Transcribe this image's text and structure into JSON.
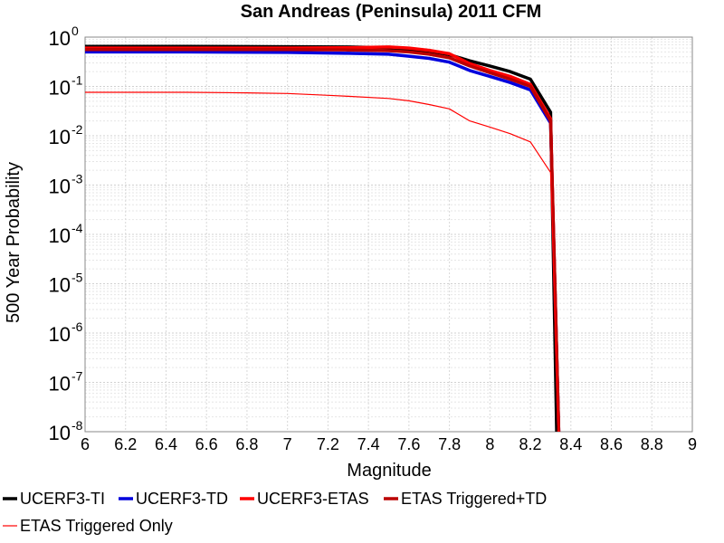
{
  "chart_data": {
    "type": "line",
    "title": "San Andreas (Peninsula) 2011 CFM",
    "xlabel": "Magnitude",
    "ylabel": "500 Year Probability",
    "xlim": [
      6,
      9
    ],
    "ylim": [
      1e-08,
      1
    ],
    "y_scale": "log",
    "grid": true,
    "legend_position": "bottom",
    "x_ticks": [
      "6",
      "6.2",
      "6.4",
      "6.6",
      "6.8",
      "7",
      "7.2",
      "7.4",
      "7.6",
      "7.8",
      "8",
      "8.2",
      "8.4",
      "8.6",
      "8.8",
      "9"
    ],
    "y_ticks": [
      {
        "base": "10",
        "exp": "0"
      },
      {
        "base": "10",
        "exp": "-1"
      },
      {
        "base": "10",
        "exp": "-2"
      },
      {
        "base": "10",
        "exp": "-3"
      },
      {
        "base": "10",
        "exp": "-4"
      },
      {
        "base": "10",
        "exp": "-5"
      },
      {
        "base": "10",
        "exp": "-6"
      },
      {
        "base": "10",
        "exp": "-7"
      },
      {
        "base": "10",
        "exp": "-8"
      }
    ],
    "series": [
      {
        "name": "UCERF3-TI",
        "color": "#000000",
        "width": 3.5,
        "x": [
          6.0,
          6.5,
          7.0,
          7.3,
          7.5,
          7.6,
          7.7,
          7.8,
          7.9,
          8.0,
          8.1,
          8.2,
          8.3,
          8.33
        ],
        "y": [
          0.65,
          0.65,
          0.64,
          0.63,
          0.61,
          0.57,
          0.52,
          0.44,
          0.33,
          0.26,
          0.2,
          0.14,
          0.03,
          1e-08
        ]
      },
      {
        "name": "UCERF3-TD",
        "color": "#0000dd",
        "width": 3.5,
        "x": [
          6.0,
          6.5,
          7.0,
          7.3,
          7.5,
          7.6,
          7.7,
          7.8,
          7.9,
          8.0,
          8.1,
          8.2,
          8.3,
          8.34
        ],
        "y": [
          0.5,
          0.5,
          0.49,
          0.47,
          0.45,
          0.41,
          0.37,
          0.31,
          0.21,
          0.16,
          0.12,
          0.085,
          0.018,
          1e-08
        ]
      },
      {
        "name": "UCERF3-ETAS",
        "color": "#ff0000",
        "width": 3.5,
        "x": [
          6.0,
          6.5,
          7.0,
          7.3,
          7.5,
          7.6,
          7.7,
          7.8,
          7.9,
          8.0,
          8.1,
          8.2,
          8.3,
          8.34
        ],
        "y": [
          0.6,
          0.6,
          0.6,
          0.61,
          0.63,
          0.6,
          0.54,
          0.46,
          0.29,
          0.21,
          0.16,
          0.11,
          0.022,
          1e-08
        ]
      },
      {
        "name": "ETAS Triggered+TD",
        "color": "#bb0000",
        "width": 3.5,
        "x": [
          6.0,
          6.5,
          7.0,
          7.3,
          7.5,
          7.6,
          7.7,
          7.8,
          7.9,
          8.0,
          8.1,
          8.2,
          8.3,
          8.34
        ],
        "y": [
          0.56,
          0.56,
          0.56,
          0.55,
          0.53,
          0.5,
          0.45,
          0.38,
          0.26,
          0.19,
          0.14,
          0.1,
          0.02,
          1e-08
        ]
      },
      {
        "name": "ETAS Triggered Only",
        "color": "#ff0000",
        "width": 1.2,
        "x": [
          6.0,
          6.5,
          6.8,
          7.0,
          7.2,
          7.3,
          7.5,
          7.6,
          7.7,
          7.8,
          7.9,
          8.0,
          8.1,
          8.2,
          8.3,
          8.34
        ],
        "y": [
          0.076,
          0.076,
          0.074,
          0.072,
          0.066,
          0.063,
          0.057,
          0.051,
          0.043,
          0.035,
          0.02,
          0.015,
          0.011,
          0.0075,
          0.0018,
          1e-08
        ]
      }
    ]
  }
}
